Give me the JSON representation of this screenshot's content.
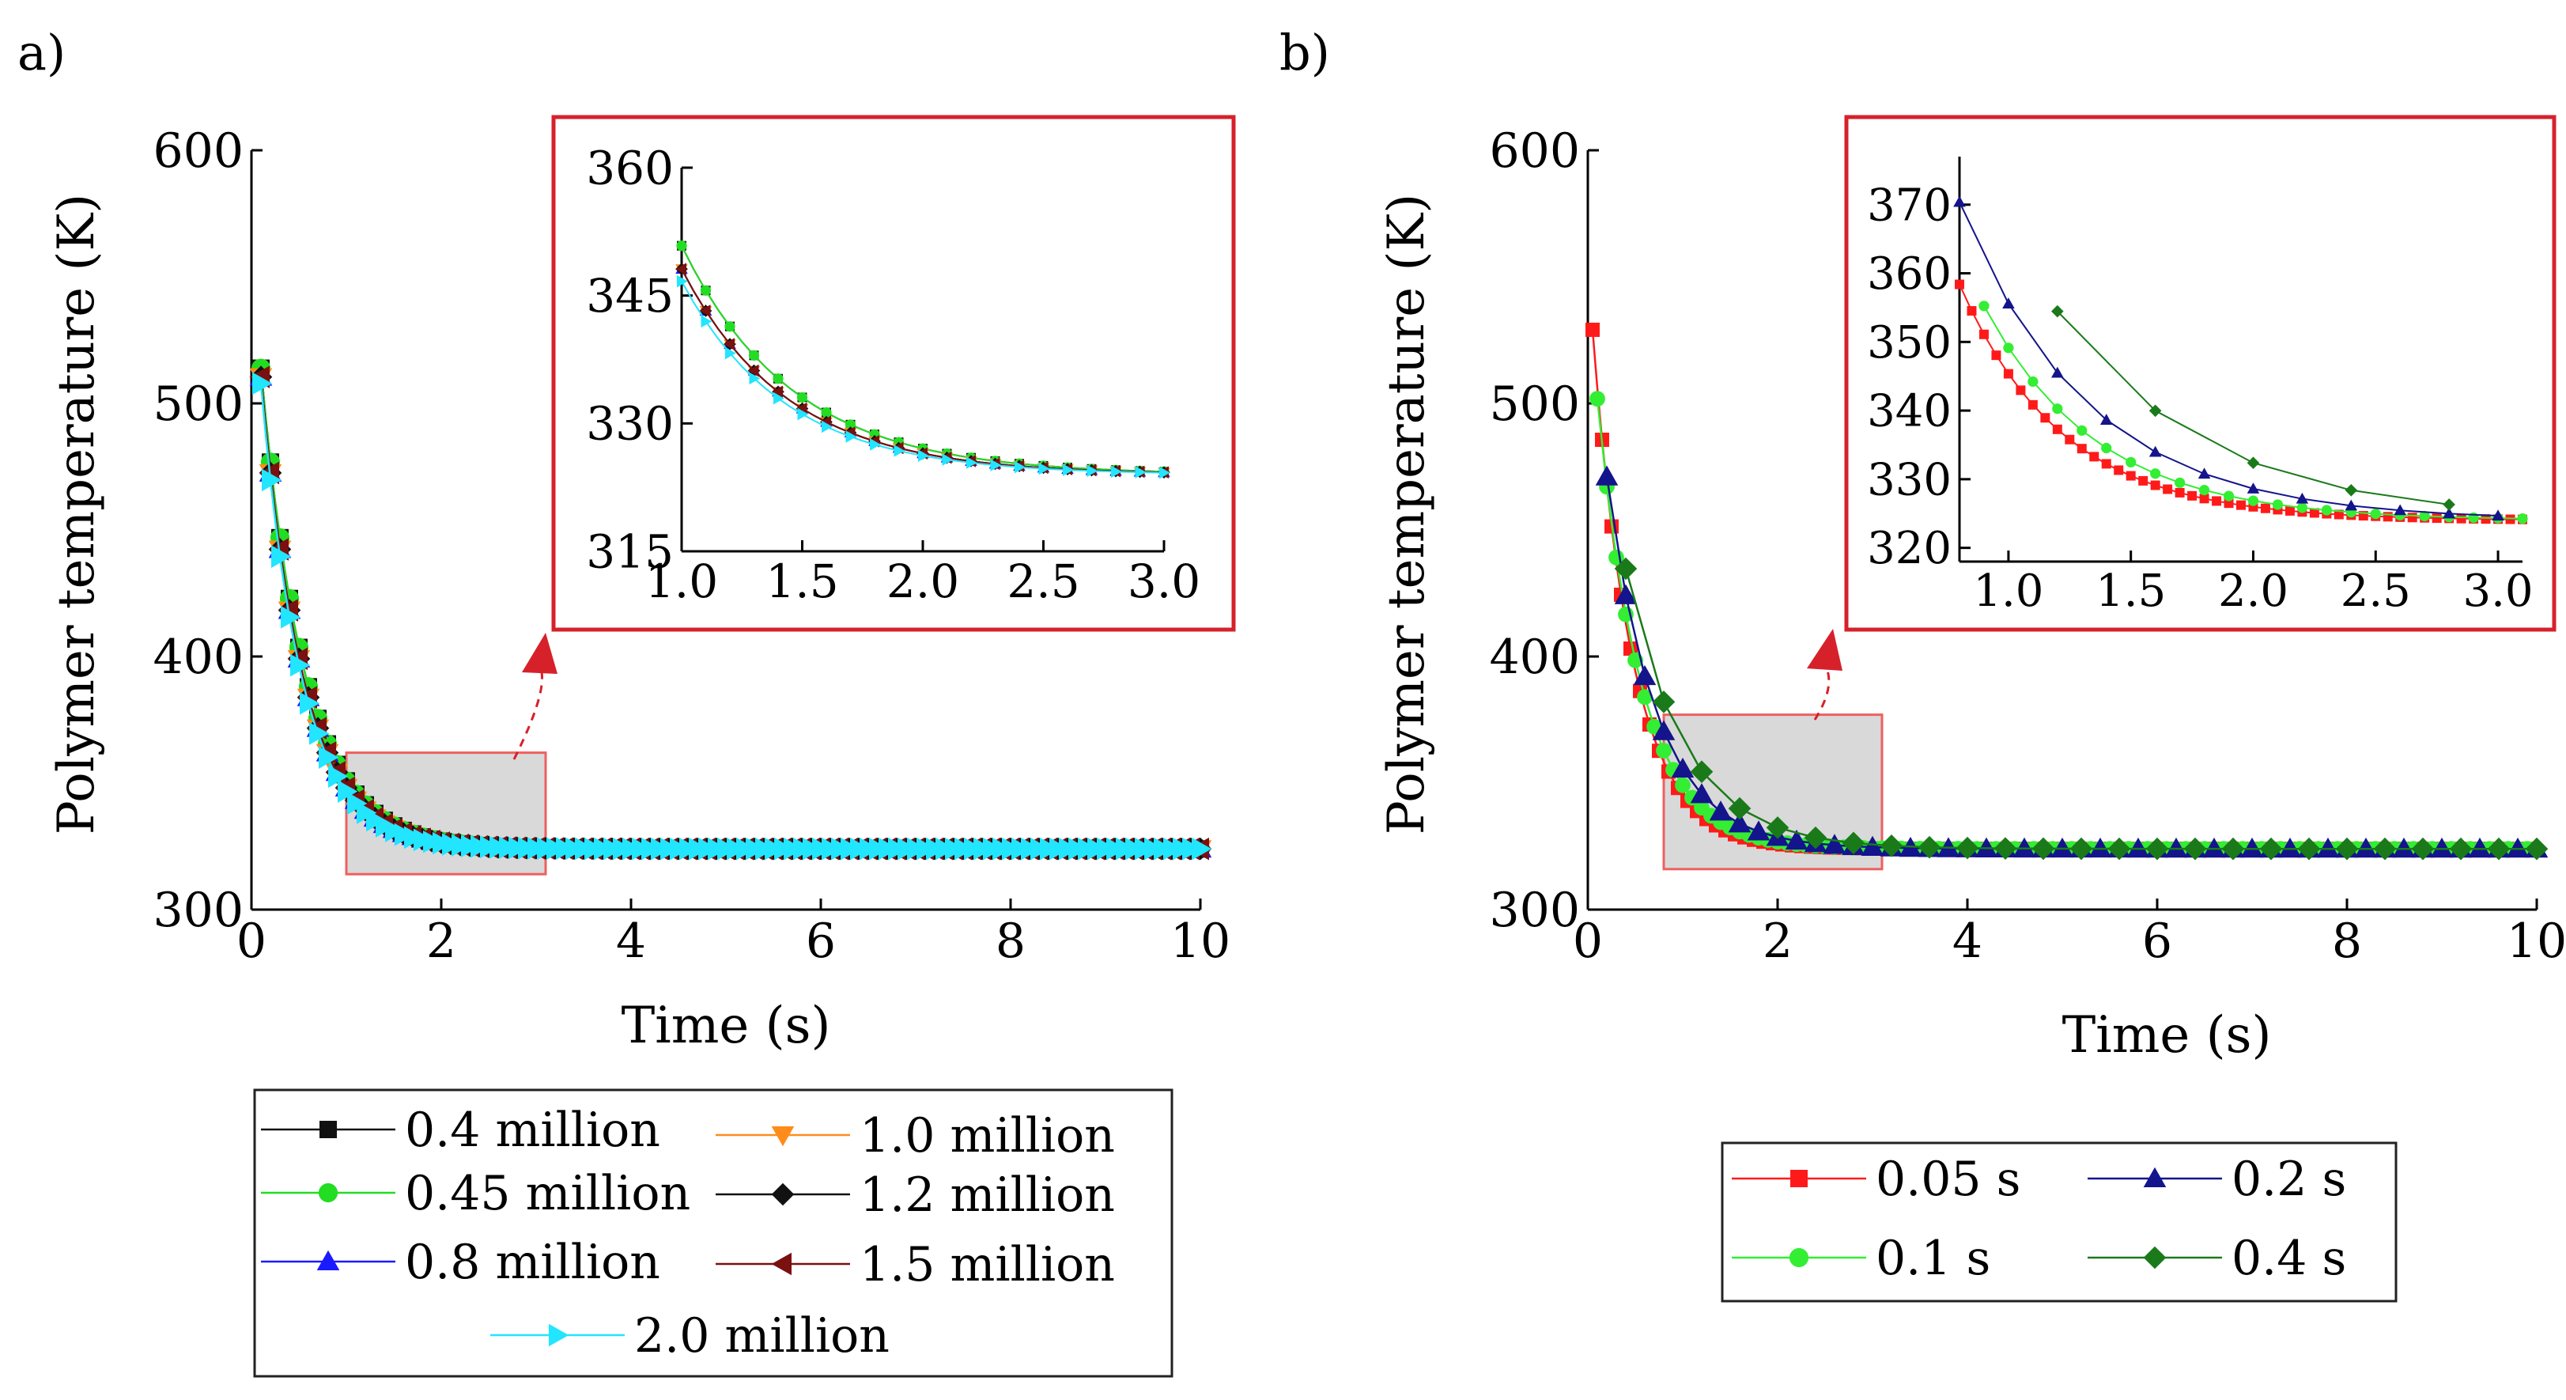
{
  "panels": {
    "a": {
      "label": "a)"
    },
    "b": {
      "label": "b)"
    }
  },
  "colors": {
    "black": "#111111",
    "green": "#22dd22",
    "blue": "#1a1aff",
    "orange": "#ff8c1a",
    "dark": "#111111",
    "darkred": "#7a1010",
    "cyan": "#22e5ff",
    "red": "#ff1a1a",
    "lightgreen": "#33ee33",
    "navy": "#14148c",
    "darkgreen": "#1a7a1a",
    "frame": "#d6212b",
    "zoom_fill": "#d9d9d9",
    "zoom_stroke": "#ee6060"
  },
  "chart_data": [
    {
      "id": "a-main",
      "type": "line",
      "xlabel": "Time (s)",
      "ylabel": "Polymer temperature (K)",
      "xlim": [
        0,
        10
      ],
      "ylim": [
        300,
        600
      ],
      "xticks": [
        0,
        2,
        4,
        6,
        8,
        10
      ],
      "yticks": [
        300,
        400,
        500,
        600
      ],
      "zoom_region": {
        "x": [
          1.0,
          3.1
        ],
        "y": [
          314,
          362
        ]
      },
      "legend_position": "below",
      "series": [
        {
          "name": "0.4 million",
          "color": "#111111",
          "marker": "square",
          "T0": 560,
          "Tinf": 324,
          "tau": 0.46
        },
        {
          "name": "0.45 million",
          "color": "#22dd22",
          "marker": "circle",
          "T0": 560,
          "Tinf": 324,
          "tau": 0.46
        },
        {
          "name": "0.8 million",
          "color": "#1a1aff",
          "marker": "triangle-up",
          "T0": 558,
          "Tinf": 324,
          "tau": 0.44
        },
        {
          "name": "1.0 million",
          "color": "#ff8c1a",
          "marker": "triangle-down",
          "T0": 558,
          "Tinf": 324,
          "tau": 0.44
        },
        {
          "name": "1.2 million",
          "color": "#111111",
          "marker": "diamond",
          "T0": 558,
          "Tinf": 324,
          "tau": 0.44
        },
        {
          "name": "1.5 million",
          "color": "#7a1010",
          "marker": "triangle-left",
          "T0": 558,
          "Tinf": 324,
          "tau": 0.44
        },
        {
          "name": "2.0 million",
          "color": "#22e5ff",
          "marker": "triangle-right",
          "T0": 556,
          "Tinf": 324,
          "tau": 0.43
        }
      ]
    },
    {
      "id": "a-inset",
      "type": "line",
      "xlim": [
        1.0,
        3.0
      ],
      "ylim": [
        315,
        360
      ],
      "xticks": [
        1.0,
        1.5,
        2.0,
        2.5,
        3.0
      ],
      "yticks": [
        315,
        330,
        345,
        360
      ],
      "xticklabels": [
        "1.0",
        "1.5",
        "2.0",
        "2.5",
        "3.0"
      ],
      "yticklabels": [
        "315",
        "330",
        "345",
        "360"
      ]
    },
    {
      "id": "b-main",
      "type": "line",
      "xlabel": "Time (s)",
      "ylabel": "Polymer temperature (K)",
      "xlim": [
        0,
        10
      ],
      "ylim": [
        300,
        600
      ],
      "xticks": [
        0,
        2,
        4,
        6,
        8,
        10
      ],
      "yticks": [
        300,
        400,
        500,
        600
      ],
      "zoom_region": {
        "x": [
          0.8,
          3.1
        ],
        "y": [
          316,
          377
        ]
      },
      "legend_position": "below",
      "series": [
        {
          "name": "0.05 s",
          "color": "#ff1a1a",
          "marker": "square",
          "T0": 555,
          "Tinf": 324,
          "tau": 0.42,
          "dt": 0.05
        },
        {
          "name": "0.1 s",
          "color": "#33ee33",
          "marker": "circle",
          "T0": 545,
          "Tinf": 324,
          "tau": 0.46,
          "dt": 0.1
        },
        {
          "name": "0.2 s",
          "color": "#14148c",
          "marker": "triangle-up",
          "T0": 540,
          "Tinf": 324,
          "tau": 0.52,
          "dt": 0.2
        },
        {
          "name": "0.4 s",
          "color": "#1a7a1a",
          "marker": "diamond",
          "T0": 535,
          "Tinf": 324,
          "tau": 0.62,
          "dt": 0.4
        }
      ]
    },
    {
      "id": "b-inset",
      "type": "line",
      "xlim": [
        0.8,
        3.1
      ],
      "ylim": [
        318,
        377
      ],
      "xticks": [
        1.0,
        1.5,
        2.0,
        2.5,
        3.0
      ],
      "yticks": [
        320,
        330,
        340,
        350,
        360,
        370
      ],
      "xticklabels": [
        "1.0",
        "1.5",
        "2.0",
        "2.5",
        "3.0"
      ],
      "yticklabels": [
        "320",
        "330",
        "340",
        "350",
        "360",
        "370"
      ]
    }
  ]
}
